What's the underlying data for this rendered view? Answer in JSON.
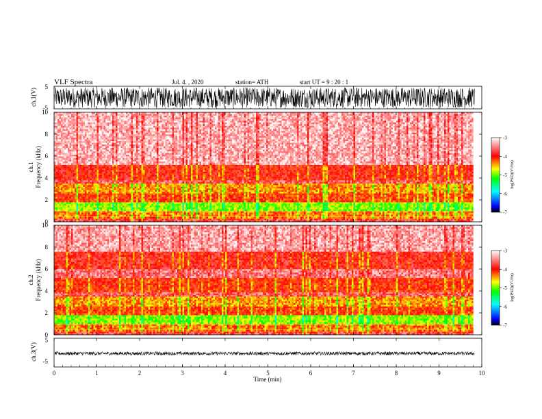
{
  "header": {
    "title": "VLF  Spectra",
    "date": "Jul.  4.  , 2020",
    "station": "station= ATH",
    "start": "start  UT  =    9  : 20 : 1"
  },
  "chart_data": {
    "type": "heatmap",
    "x_axis": {
      "label": "Time  (min)",
      "range": [
        0,
        10
      ],
      "ticks": [
        0,
        1,
        2,
        3,
        4,
        5,
        6,
        7,
        8,
        9,
        10
      ],
      "data_end": 9.83
    },
    "waveform_panels": [
      {
        "id": "ch1",
        "label": "ch.1(V)",
        "ylim": [
          -5,
          5
        ],
        "yticks": [
          "5",
          "-5"
        ],
        "amplitude_range": [
          -4.5,
          4.5
        ],
        "color": "#000000"
      },
      {
        "id": "ch3",
        "label": "ch.3(V)",
        "ylim": [
          -5,
          5
        ],
        "yticks": [
          "5",
          "-5"
        ],
        "amplitude_range": [
          -0.9,
          0.3
        ],
        "color": "#000000"
      }
    ],
    "spectrogram_panels": [
      {
        "id": "ch1",
        "label_line1": "ch.1",
        "label_line2": "Frequency  (kHz)",
        "ylim": [
          0,
          10
        ],
        "yticks": [
          0,
          2,
          4,
          6,
          8,
          10
        ],
        "bands": [
          {
            "from": 0,
            "to": 0.3,
            "level": -3.7
          },
          {
            "from": 0.3,
            "to": 1.0,
            "level": -4.3
          },
          {
            "from": 1.0,
            "to": 1.8,
            "level": -4.9
          },
          {
            "from": 1.8,
            "to": 2.6,
            "level": -4.1
          },
          {
            "from": 2.6,
            "to": 3.5,
            "level": -4.4
          },
          {
            "from": 3.5,
            "to": 3.8,
            "level": -3.6
          },
          {
            "from": 3.8,
            "to": 5.2,
            "level": -3.95
          },
          {
            "from": 5.2,
            "to": 10,
            "level": -3.3
          }
        ]
      },
      {
        "id": "ch2",
        "label_line1": "ch.2",
        "label_line2": "Frequency  (kHz)",
        "ylim": [
          0,
          10
        ],
        "yticks": [
          0,
          2,
          4,
          6,
          8,
          10
        ],
        "bands": [
          {
            "from": 0,
            "to": 0.3,
            "level": -3.7
          },
          {
            "from": 0.3,
            "to": 1.0,
            "level": -4.3
          },
          {
            "from": 1.0,
            "to": 1.8,
            "level": -4.9
          },
          {
            "from": 1.8,
            "to": 2.6,
            "level": -4.1
          },
          {
            "from": 2.6,
            "to": 3.5,
            "level": -4.4
          },
          {
            "from": 3.5,
            "to": 3.9,
            "level": -3.6
          },
          {
            "from": 3.9,
            "to": 5.2,
            "level": -4.05
          },
          {
            "from": 5.2,
            "to": 6.0,
            "level": -3.5
          },
          {
            "from": 6.0,
            "to": 7.6,
            "level": -3.9
          },
          {
            "from": 7.6,
            "to": 10,
            "level": -3.35
          }
        ]
      }
    ],
    "colorbar": {
      "label": "log(PSD)(V²/Hz)",
      "range": [
        -7,
        -3
      ],
      "ticks": [
        "-3",
        "-4",
        "-5",
        "-6",
        "-7"
      ],
      "colors": [
        "#000000",
        "#0000ff",
        "#00ffff",
        "#00ff00",
        "#ffff00",
        "#ff0000",
        "#ffffff"
      ]
    }
  }
}
